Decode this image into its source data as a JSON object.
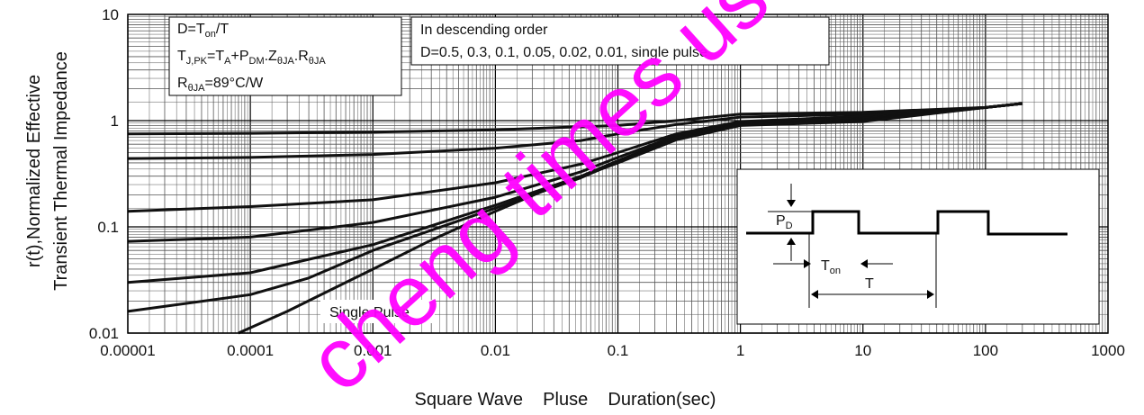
{
  "chart_data": {
    "type": "line",
    "title": "",
    "xlabel": "Square Wave    Pluse    Duration(sec)",
    "ylabel_line1": "r(t),Normalized Effective",
    "ylabel_line2": "Transient Thermal Impedance",
    "x_scale": "log",
    "y_scale": "log",
    "xlim": [
      1e-05,
      1000
    ],
    "ylim": [
      0.01,
      10
    ],
    "grid": true,
    "x_ticks": [
      {
        "value": 1e-05,
        "label": "0.00001"
      },
      {
        "value": 0.0001,
        "label": "0.0001"
      },
      {
        "value": 0.001,
        "label": "0.001"
      },
      {
        "value": 0.01,
        "label": "0.01"
      },
      {
        "value": 0.1,
        "label": "0.1"
      },
      {
        "value": 1,
        "label": "1"
      },
      {
        "value": 10,
        "label": "10"
      },
      {
        "value": 100,
        "label": "100"
      },
      {
        "value": 1000,
        "label": "1000"
      }
    ],
    "y_ticks": [
      {
        "value": 0.01,
        "label": "0.01"
      },
      {
        "value": 0.1,
        "label": "0.1"
      },
      {
        "value": 1,
        "label": "1"
      },
      {
        "value": 10,
        "label": "10"
      }
    ],
    "series": [
      {
        "x": [
          1e-05,
          0.0001,
          0.001,
          0.01,
          0.1,
          0.3,
          1,
          10,
          100,
          200
        ],
        "y": [
          0.75,
          0.76,
          0.78,
          0.82,
          0.9,
          1.0,
          1.15,
          1.2,
          1.33,
          1.45
        ]
      },
      {
        "x": [
          1e-05,
          0.0001,
          0.001,
          0.01,
          0.05,
          0.1,
          0.3,
          1,
          10,
          100,
          200
        ],
        "y": [
          0.44,
          0.45,
          0.48,
          0.55,
          0.65,
          0.75,
          0.92,
          1.08,
          1.15,
          1.33,
          1.45
        ]
      },
      {
        "x": [
          1e-05,
          0.0001,
          0.001,
          0.01,
          0.05,
          0.1,
          0.3,
          1,
          10,
          100,
          200
        ],
        "y": [
          0.14,
          0.155,
          0.18,
          0.26,
          0.39,
          0.5,
          0.75,
          0.98,
          1.1,
          1.33,
          1.45
        ]
      },
      {
        "x": [
          1e-05,
          0.0001,
          0.001,
          0.01,
          0.05,
          0.1,
          0.3,
          1,
          10,
          100,
          200
        ],
        "y": [
          0.073,
          0.08,
          0.11,
          0.19,
          0.33,
          0.45,
          0.72,
          0.95,
          1.05,
          1.33,
          1.45
        ]
      },
      {
        "x": [
          1e-05,
          0.0001,
          0.001,
          0.01,
          0.05,
          0.1,
          0.3,
          1,
          10,
          100,
          200
        ],
        "y": [
          0.03,
          0.037,
          0.068,
          0.16,
          0.3,
          0.42,
          0.7,
          0.93,
          1.02,
          1.33,
          1.45
        ]
      },
      {
        "x": [
          1e-05,
          0.0001,
          0.0003,
          0.001,
          0.01,
          0.05,
          0.1,
          0.3,
          1,
          10,
          100,
          200
        ],
        "y": [
          0.016,
          0.023,
          0.033,
          0.06,
          0.15,
          0.29,
          0.41,
          0.68,
          0.92,
          1.0,
          1.33,
          1.45
        ]
      },
      {
        "x": [
          8e-05,
          0.0002,
          0.0005,
          0.001,
          0.003,
          0.01,
          0.03,
          0.1,
          0.3,
          1,
          10,
          100,
          200
        ],
        "y": [
          0.01,
          0.016,
          0.027,
          0.04,
          0.075,
          0.14,
          0.24,
          0.4,
          0.66,
          0.9,
          0.98,
          1.33,
          1.45
        ]
      }
    ],
    "annotations": {
      "box1": {
        "line1": {
          "main": "D=T",
          "sub": "on",
          "tail": "/T"
        },
        "line2": {
          "p1": "T",
          "s1": "J,PK",
          "p2": "=T",
          "s2": "A",
          "p3": "+P",
          "s3": "DM",
          "p4": ".Z",
          "s4": "θJA",
          "p5": ".R",
          "s5": "θJA"
        },
        "line3": {
          "main": "R",
          "sub": "θJA",
          "tail": "=89°C/W"
        }
      },
      "box2": {
        "line1": "In descending order",
        "line2": "D=0.5, 0.3, 0.1, 0.05, 0.02, 0.01, single pulse"
      },
      "single_pulse_label": "Single Pulse",
      "inset": {
        "pd_main": "P",
        "pd_sub": "D",
        "ton_main": "T",
        "ton_sub": "on",
        "t_label": "T"
      }
    },
    "watermark": "cheng times use"
  }
}
